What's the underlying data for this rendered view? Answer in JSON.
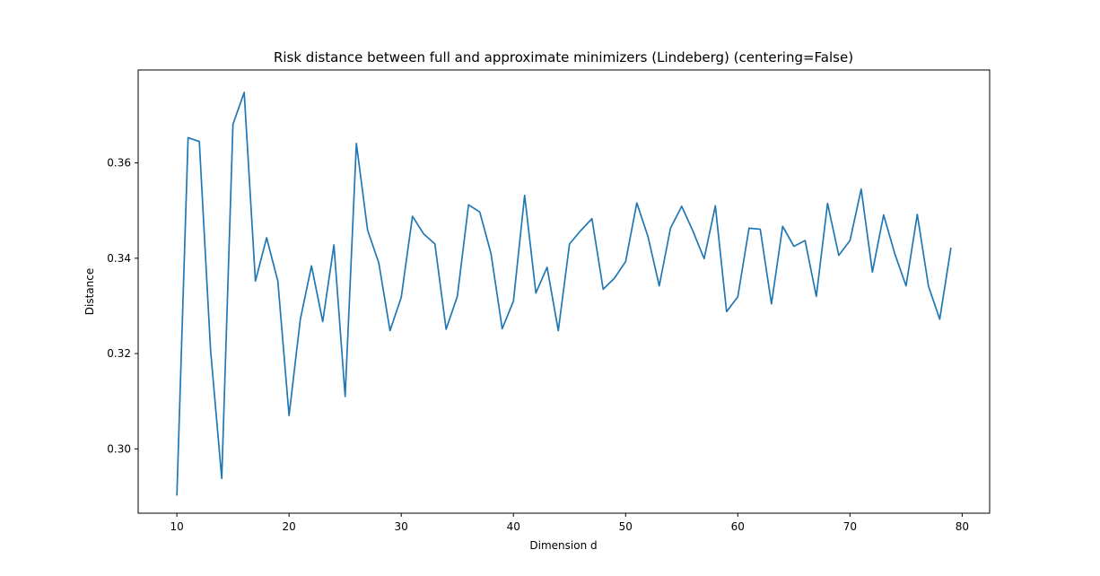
{
  "chart_data": {
    "type": "line",
    "title": "Risk distance between full and approximate minimizers (Lindeberg) (centering=False)",
    "xlabel": "Dimension d",
    "ylabel": "Distance",
    "xlim": [
      6.55,
      82.45
    ],
    "ylim": [
      0.2865,
      0.3795
    ],
    "xticks": [
      10,
      20,
      30,
      40,
      50,
      60,
      70,
      80
    ],
    "yticks": [
      0.3,
      0.32,
      0.34,
      0.36
    ],
    "ytick_labels": [
      "0.30",
      "0.32",
      "0.34",
      "0.36"
    ],
    "grid": false,
    "color": "#1f77b4",
    "x": [
      10,
      11,
      12,
      13,
      14,
      15,
      16,
      17,
      18,
      19,
      20,
      21,
      22,
      23,
      24,
      25,
      26,
      27,
      28,
      29,
      30,
      31,
      32,
      33,
      34,
      35,
      36,
      37,
      38,
      39,
      40,
      41,
      42,
      43,
      44,
      45,
      46,
      47,
      48,
      49,
      50,
      51,
      52,
      53,
      54,
      55,
      56,
      57,
      58,
      59,
      60,
      61,
      62,
      63,
      64,
      65,
      66,
      67,
      68,
      69,
      70,
      71,
      72,
      73,
      74,
      75,
      76,
      77,
      78,
      79
    ],
    "y": [
      0.2902,
      0.3653,
      0.3645,
      0.3208,
      0.2938,
      0.3681,
      0.3748,
      0.3352,
      0.3443,
      0.3352,
      0.307,
      0.3271,
      0.3384,
      0.3267,
      0.3428,
      0.311,
      0.3641,
      0.3459,
      0.339,
      0.3248,
      0.3318,
      0.3488,
      0.3451,
      0.343,
      0.3251,
      0.332,
      0.3512,
      0.3497,
      0.341,
      0.3252,
      0.331,
      0.3532,
      0.3327,
      0.3381,
      0.3248,
      0.343,
      0.3458,
      0.3483,
      0.3335,
      0.3358,
      0.3393,
      0.3516,
      0.3445,
      0.3342,
      0.3463,
      0.3509,
      0.3457,
      0.3399,
      0.351,
      0.3288,
      0.3319,
      0.3463,
      0.3461,
      0.3304,
      0.3467,
      0.3425,
      0.3437,
      0.332,
      0.3515,
      0.3406,
      0.3437,
      0.3545,
      0.3371,
      0.3491,
      0.3409,
      0.3342,
      0.3492,
      0.3341,
      0.3272,
      0.3422
    ]
  }
}
